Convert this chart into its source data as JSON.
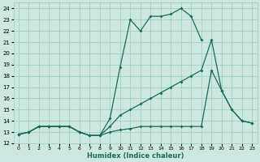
{
  "xlabel": "Humidex (Indice chaleur)",
  "bg_color": "#cce8e0",
  "grid_color": "#99ccbb",
  "line_color": "#1a6b5a",
  "xlim": [
    -0.5,
    23.5
  ],
  "ylim": [
    12,
    24.5
  ],
  "yticks": [
    12,
    13,
    14,
    15,
    16,
    17,
    18,
    19,
    20,
    21,
    22,
    23,
    24
  ],
  "xticks": [
    0,
    1,
    2,
    3,
    4,
    5,
    6,
    7,
    8,
    9,
    10,
    11,
    12,
    13,
    14,
    15,
    16,
    17,
    18,
    19,
    20,
    21,
    22,
    23
  ],
  "line1_y": [
    12.8,
    13.0,
    13.5,
    13.5,
    13.5,
    13.5,
    13.0,
    12.7,
    12.7,
    14.2,
    18.8,
    23.0,
    22.0,
    23.3,
    23.3,
    23.5,
    24.0,
    23.3,
    21.2,
    null,
    null,
    null,
    null,
    null
  ],
  "line2_y": [
    12.8,
    13.0,
    13.5,
    13.5,
    13.5,
    13.5,
    13.0,
    12.7,
    12.7,
    13.5,
    14.5,
    15.0,
    15.5,
    16.0,
    16.5,
    17.0,
    17.5,
    18.0,
    18.5,
    21.2,
    16.7,
    15.0,
    14.0,
    13.8
  ],
  "line3_y": [
    12.8,
    13.0,
    13.5,
    13.5,
    13.5,
    13.5,
    13.0,
    12.7,
    12.7,
    13.0,
    13.2,
    13.3,
    13.5,
    13.5,
    13.5,
    13.5,
    13.5,
    13.5,
    13.5,
    18.5,
    16.7,
    15.0,
    14.0,
    13.8
  ]
}
